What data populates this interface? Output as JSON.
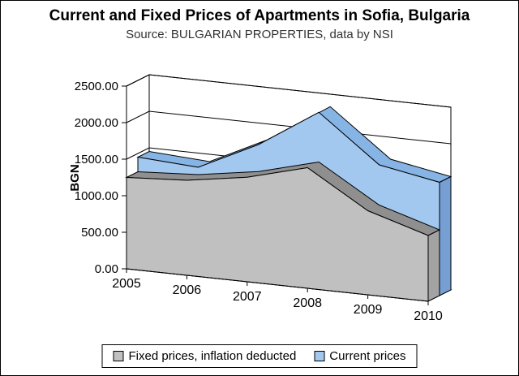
{
  "title": "Current and Fixed Prices of Apartments in Sofia, Bulgaria",
  "subtitle": "Source: BULGARIAN PROPERTIES, data by NSI",
  "legend": {
    "items": [
      {
        "label": "Fixed prices, inflation deducted",
        "color": "#c0c0c0"
      },
      {
        "label": "Current prices",
        "color": "#a2c8ef"
      }
    ]
  },
  "chart_data": {
    "type": "area",
    "projection": "3d",
    "title": "Current and Fixed Prices of Apartments in Sofia, Bulgaria",
    "subtitle": "Source: BULGARIAN PROPERTIES, data by NSI",
    "categories": [
      "2005",
      "2006",
      "2007",
      "2008",
      "2009",
      "2010"
    ],
    "series": [
      {
        "name": "Fixed prices, inflation deducted",
        "values": [
          1250,
          1300,
          1430,
          1650,
          1150,
          900
        ],
        "front_color": "#c0c0c0",
        "top_color": "#8f8f8f",
        "side_color": "#a3a3a3"
      },
      {
        "name": "Current prices",
        "values": [
          1450,
          1400,
          1800,
          2330,
          1700,
          1550
        ],
        "front_color": "#a2c8ef",
        "top_color": "#86b4e4",
        "side_color": "#769fd4"
      }
    ],
    "xlabel": "",
    "ylabel": "BGN",
    "ylim": [
      0,
      2500
    ],
    "y_ticks": [
      "0.00",
      "500.00",
      "1000.00",
      "1500.00",
      "2000.00",
      "2500.00"
    ],
    "gridlines": true,
    "legend_position": "bottom",
    "wall_color": "#ffffff",
    "line_color": "#000000"
  }
}
